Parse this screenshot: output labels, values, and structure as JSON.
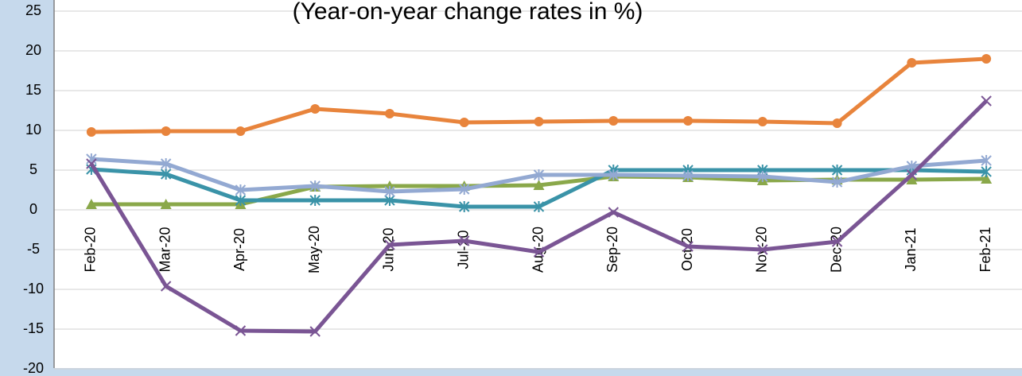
{
  "chart_data": {
    "type": "line",
    "title": "(Year-on-year change rates in %)",
    "categories": [
      "Feb-20",
      "Mar-20",
      "Apr-20",
      "May-20",
      "Jun-20",
      "Jul-20",
      "Aug-20",
      "Sep-20",
      "Oct-20",
      "Nov-20",
      "Dec-20",
      "Jan-21",
      "Feb-21"
    ],
    "series": [
      {
        "color": "#e8843c",
        "marker": "circle",
        "values": [
          9.8,
          9.9,
          9.9,
          12.7,
          12.1,
          11.0,
          11.1,
          11.2,
          11.2,
          11.1,
          10.9,
          18.5,
          19.0
        ]
      },
      {
        "color": "#8aa84a",
        "marker": "triangle",
        "values": [
          0.7,
          0.7,
          0.7,
          2.9,
          3.0,
          3.0,
          3.1,
          4.2,
          4.1,
          3.7,
          3.8,
          3.8,
          3.9
        ]
      },
      {
        "color": "#3a93a8",
        "marker": "asterisk",
        "values": [
          5.1,
          4.5,
          1.2,
          1.2,
          1.2,
          0.4,
          0.4,
          5.0,
          5.0,
          5.0,
          5.0,
          5.0,
          4.8
        ]
      },
      {
        "color": "#93a9d2",
        "marker": "star",
        "values": [
          6.4,
          5.8,
          2.5,
          3.0,
          2.3,
          2.6,
          4.4,
          4.4,
          4.3,
          4.2,
          3.5,
          5.5,
          6.2
        ]
      },
      {
        "color": "#7a5594",
        "marker": "x",
        "values": [
          5.8,
          -9.6,
          -15.2,
          -15.3,
          -4.4,
          -3.9,
          -5.3,
          -0.3,
          -4.6,
          -5.0,
          -4.0,
          4.4,
          13.7
        ]
      }
    ],
    "ylim": [
      -20,
      25
    ],
    "yticks": [
      -20,
      -15,
      -10,
      -5,
      0,
      5,
      10,
      15,
      20,
      25
    ],
    "grid": true
  }
}
